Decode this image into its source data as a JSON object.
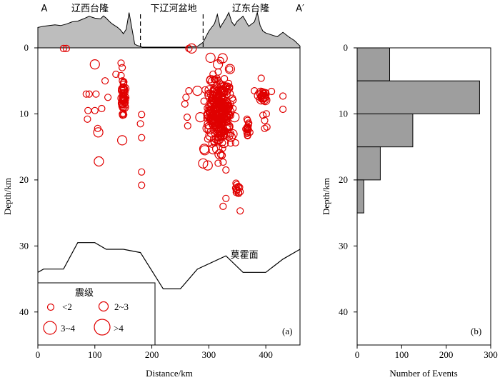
{
  "chart_data": [
    {
      "type": "scatter",
      "panel_label": "(a)",
      "xlabel": "Distance/km",
      "ylabel": "Depth/km",
      "xlim": [
        0,
        460
      ],
      "ylim": [
        45,
        0
      ],
      "xticks": [
        0,
        100,
        200,
        300,
        400
      ],
      "yticks": [
        0,
        10,
        20,
        30,
        40
      ],
      "profile_labels": {
        "start": "A",
        "end": "A′"
      },
      "regions": [
        {
          "name": "辽西台隆",
          "x": 90
        },
        {
          "name": "下辽河盆地",
          "x": 235
        },
        {
          "name": "辽东台隆",
          "x": 365
        }
      ],
      "region_boundaries_km": [
        180,
        290
      ],
      "moho": {
        "label": "莫霍面",
        "label_position": [
          338,
          31.8
        ],
        "x": [
          0,
          10,
          45,
          70,
          100,
          120,
          150,
          180,
          220,
          250,
          280,
          330,
          360,
          400,
          430,
          460
        ],
        "depth": [
          34.0,
          33.5,
          33.5,
          29.5,
          29.5,
          30.5,
          30.5,
          31.0,
          36.5,
          36.5,
          33.5,
          31.5,
          34.0,
          34.0,
          32.0,
          30.5
        ]
      },
      "topography": {
        "x": [
          0,
          10,
          20,
          30,
          40,
          50,
          60,
          70,
          80,
          90,
          100,
          110,
          115,
          120,
          125,
          130,
          140,
          145,
          150,
          155,
          160,
          170,
          175,
          180,
          183,
          190,
          200,
          220,
          240,
          260,
          280,
          290,
          295,
          300,
          310,
          315,
          320,
          330,
          335,
          340,
          345,
          350,
          360,
          370,
          380,
          385,
          390,
          395,
          400,
          410,
          420,
          430,
          440,
          450,
          460
        ],
        "elevation": [
          0.55,
          0.58,
          0.6,
          0.62,
          0.6,
          0.64,
          0.7,
          0.72,
          0.78,
          0.85,
          0.8,
          0.78,
          0.86,
          0.8,
          0.72,
          0.65,
          0.55,
          0.48,
          0.38,
          0.5,
          0.95,
          0.1,
          0.06,
          0.04,
          0.02,
          0.02,
          0.02,
          0.02,
          0.02,
          0.02,
          0.04,
          0.15,
          0.3,
          0.45,
          0.65,
          0.9,
          0.55,
          0.8,
          0.95,
          0.7,
          0.6,
          0.72,
          0.85,
          0.58,
          0.7,
          0.95,
          0.6,
          0.45,
          0.4,
          0.35,
          0.3,
          0.42,
          0.3,
          0.2,
          0.05
        ]
      },
      "legend": {
        "title": "震级",
        "entries": [
          {
            "label": "<2",
            "radius_scale": 1
          },
          {
            "label": "2~3",
            "radius_scale": 2
          },
          {
            "label": "3~4",
            "radius_scale": 3
          },
          {
            "label": ">4",
            "radius_scale": 4
          }
        ],
        "placement": "bottom-left"
      },
      "events": [
        {
          "x": 45,
          "depth": 0.1,
          "mag": 1
        },
        {
          "x": 50,
          "depth": 0.1,
          "mag": 1
        },
        {
          "x": 100,
          "depth": 2.5,
          "mag": 2
        },
        {
          "x": 118,
          "depth": 5.0,
          "mag": 1
        },
        {
          "x": 85,
          "depth": 7.0,
          "mag": 1
        },
        {
          "x": 90,
          "depth": 7.0,
          "mag": 1
        },
        {
          "x": 102,
          "depth": 7.0,
          "mag": 1
        },
        {
          "x": 123,
          "depth": 7.5,
          "mag": 1
        },
        {
          "x": 112,
          "depth": 9.2,
          "mag": 1
        },
        {
          "x": 88,
          "depth": 9.5,
          "mag": 1
        },
        {
          "x": 100,
          "depth": 9.5,
          "mag": 1
        },
        {
          "x": 87,
          "depth": 10.8,
          "mag": 1
        },
        {
          "x": 105,
          "depth": 12.2,
          "mag": 1
        },
        {
          "x": 106,
          "depth": 12.8,
          "mag": 2
        },
        {
          "x": 107,
          "depth": 17.2,
          "mag": 2
        },
        {
          "x": 148,
          "depth": 14.0,
          "mag": 2
        },
        {
          "x": 146,
          "depth": 2.3,
          "mag": 1
        },
        {
          "x": 148,
          "depth": 3.0,
          "mag": 1
        },
        {
          "x": 146,
          "depth": 4.2,
          "mag": 1
        },
        {
          "x": 150,
          "depth": 5.3,
          "mag": 1
        },
        {
          "x": 137,
          "depth": 4.0,
          "mag": 1
        },
        {
          "x": 182,
          "depth": 10.1,
          "mag": 1
        },
        {
          "x": 180,
          "depth": 11.5,
          "mag": 1
        },
        {
          "x": 182,
          "depth": 13.6,
          "mag": 1
        },
        {
          "x": 182,
          "depth": 18.8,
          "mag": 1
        },
        {
          "x": 182,
          "depth": 20.8,
          "mag": 1
        },
        {
          "x": 270,
          "depth": 0.1,
          "mag": 2
        },
        {
          "x": 265,
          "depth": 0.1,
          "mag": 1
        },
        {
          "x": 260,
          "depth": 7.5,
          "mag": 1
        },
        {
          "x": 265,
          "depth": 6.5,
          "mag": 1
        },
        {
          "x": 258,
          "depth": 8.5,
          "mag": 1
        },
        {
          "x": 262,
          "depth": 10.5,
          "mag": 1
        },
        {
          "x": 263,
          "depth": 11.8,
          "mag": 1
        },
        {
          "x": 292,
          "depth": 15.3,
          "mag": 2
        },
        {
          "x": 290,
          "depth": 17.5,
          "mag": 2
        },
        {
          "x": 298,
          "depth": 17.8,
          "mag": 2
        },
        {
          "x": 300,
          "depth": 11.6,
          "mag": 2
        },
        {
          "x": 330,
          "depth": 22.8,
          "mag": 1
        },
        {
          "x": 325,
          "depth": 24.0,
          "mag": 1
        },
        {
          "x": 352,
          "depth": 21.0,
          "mag": 1
        },
        {
          "x": 355,
          "depth": 21.8,
          "mag": 1
        },
        {
          "x": 355,
          "depth": 24.7,
          "mag": 1
        },
        {
          "x": 348,
          "depth": 21.2,
          "mag": 1
        },
        {
          "x": 330,
          "depth": 18.5,
          "mag": 1
        },
        {
          "x": 392,
          "depth": 4.6,
          "mag": 1
        },
        {
          "x": 380,
          "depth": 6.5,
          "mag": 1
        },
        {
          "x": 400,
          "depth": 6.8,
          "mag": 1
        },
        {
          "x": 410,
          "depth": 6.6,
          "mag": 1
        },
        {
          "x": 388,
          "depth": 7.2,
          "mag": 2
        },
        {
          "x": 392,
          "depth": 7.8,
          "mag": 2
        },
        {
          "x": 395,
          "depth": 10.2,
          "mag": 1
        },
        {
          "x": 401,
          "depth": 10.0,
          "mag": 1
        },
        {
          "x": 398,
          "depth": 11.0,
          "mag": 1
        },
        {
          "x": 398,
          "depth": 12.2,
          "mag": 1
        },
        {
          "x": 402,
          "depth": 12.0,
          "mag": 1
        },
        {
          "x": 430,
          "depth": 7.3,
          "mag": 1
        },
        {
          "x": 430,
          "depth": 9.3,
          "mag": 1
        },
        {
          "x": 367,
          "depth": 10.8,
          "mag": 1
        },
        {
          "x": 370,
          "depth": 11.4,
          "mag": 1
        },
        {
          "x": 365,
          "depth": 12.3,
          "mag": 1
        },
        {
          "x": 372,
          "depth": 12.8,
          "mag": 1
        },
        {
          "x": 368,
          "depth": 13.3,
          "mag": 1
        },
        {
          "x": 337,
          "depth": 3.2,
          "mag": 2
        },
        {
          "x": 303,
          "depth": 1.5,
          "mag": 2
        },
        {
          "x": 316,
          "depth": 2.5,
          "mag": 2
        },
        {
          "x": 280,
          "depth": 6.5,
          "mag": 2
        },
        {
          "x": 310,
          "depth": 8.2,
          "mag": 2
        },
        {
          "x": 320,
          "depth": 9.0,
          "mag": 2
        },
        {
          "x": 345,
          "depth": 10.5,
          "mag": 2
        },
        {
          "x": 285,
          "depth": 10.5,
          "mag": 2
        },
        {
          "x": 305,
          "depth": 12.8,
          "mag": 2
        },
        {
          "x": 335,
          "depth": 7.0,
          "mag": 2
        }
      ],
      "clusters": [
        {
          "cx": 150,
          "cd": 7.8,
          "sx": 3,
          "sd": 2.4,
          "n": 45,
          "mags": [
            1,
            1,
            1,
            1,
            2
          ]
        },
        {
          "cx": 318,
          "cd": 9.5,
          "sx": 22,
          "sd": 5.5,
          "n": 300,
          "mags": [
            1,
            1,
            1,
            1,
            1,
            2,
            2
          ]
        },
        {
          "cx": 395,
          "cd": 7.2,
          "sx": 5,
          "sd": 0.8,
          "n": 18,
          "mags": [
            1,
            1,
            2
          ]
        },
        {
          "cx": 368,
          "cd": 12.2,
          "sx": 2,
          "sd": 0.9,
          "n": 14,
          "mags": [
            1,
            1,
            1
          ]
        },
        {
          "cx": 350,
          "cd": 21.3,
          "sx": 4,
          "sd": 1.2,
          "n": 10,
          "mags": [
            1
          ]
        }
      ]
    },
    {
      "type": "bar",
      "orientation": "horizontal",
      "panel_label": "(b)",
      "xlabel": "Number of Events",
      "ylabel": "Depth/km",
      "xlim": [
        0,
        300
      ],
      "ylim": [
        45,
        0
      ],
      "xticks": [
        0,
        100,
        200,
        300
      ],
      "yticks": [
        0,
        10,
        20,
        30,
        40
      ],
      "bins_km": [
        [
          0,
          5
        ],
        [
          5,
          10
        ],
        [
          10,
          15
        ],
        [
          15,
          20
        ],
        [
          20,
          25
        ]
      ],
      "values": [
        73,
        275,
        125,
        52,
        15
      ]
    }
  ]
}
